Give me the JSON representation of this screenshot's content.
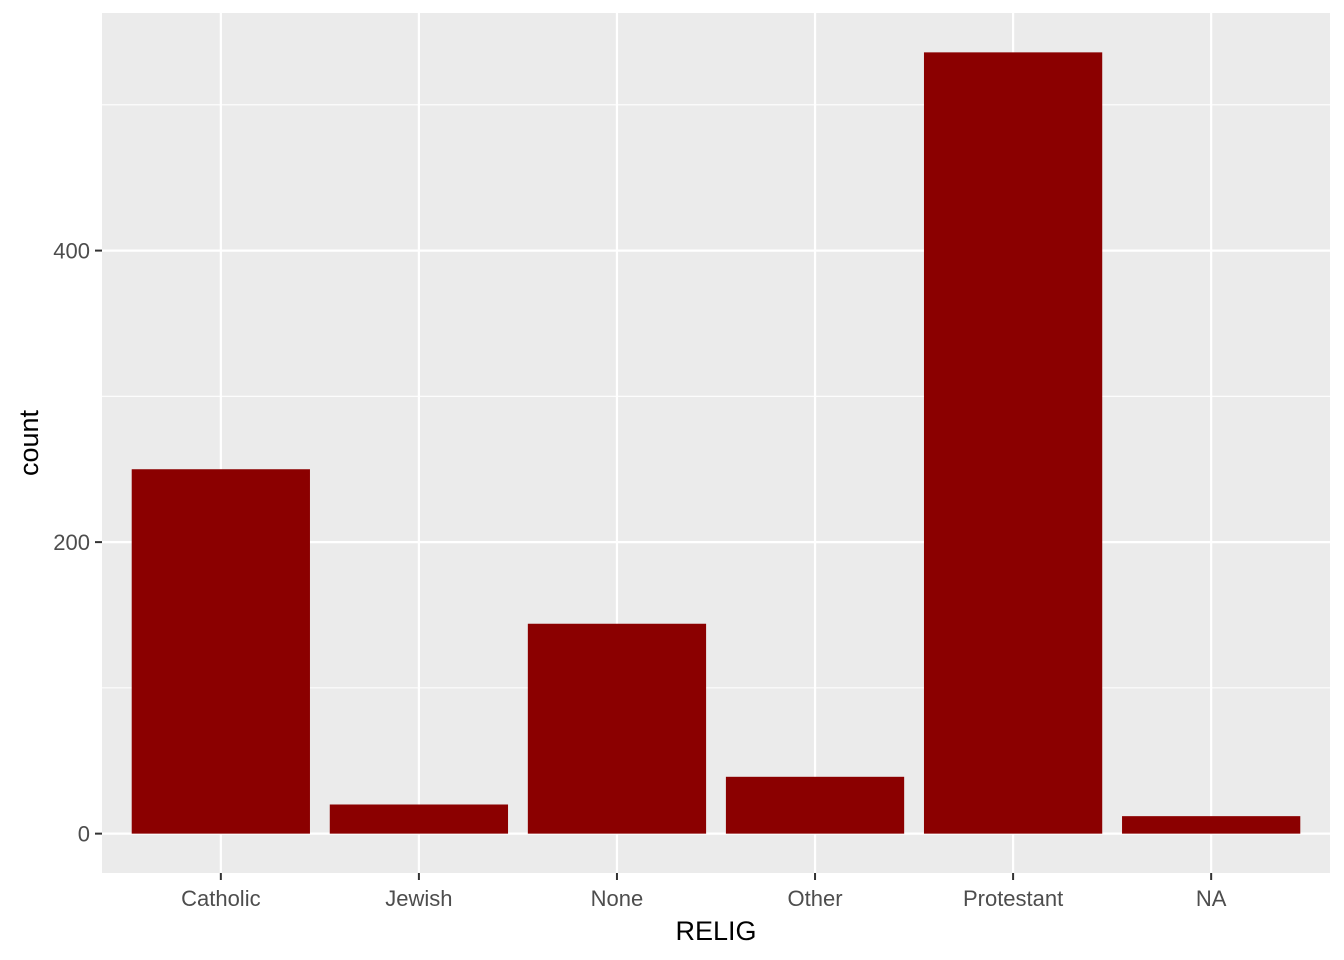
{
  "chart_data": {
    "type": "bar",
    "title": "",
    "xlabel": "RELIG",
    "ylabel": "count",
    "categories": [
      "Catholic",
      "Jewish",
      "None",
      "Other",
      "Protestant",
      "NA"
    ],
    "values": [
      250,
      20,
      144,
      39,
      536,
      12
    ],
    "ylim": [
      -27,
      563
    ],
    "yticks": [
      0,
      200,
      400
    ],
    "ytick_labels": [
      "0",
      "200",
      "400"
    ],
    "grid": true,
    "legend": "none",
    "colors": {
      "bar": "#8b0000",
      "panel": "#ebebeb",
      "grid": "#ffffff",
      "tick": "#333333"
    }
  }
}
